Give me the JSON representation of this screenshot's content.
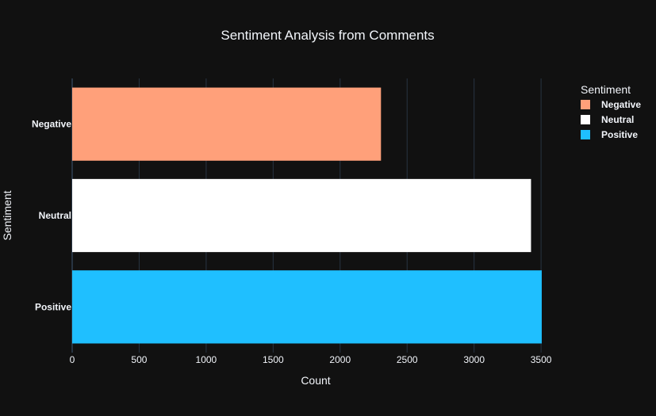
{
  "chart_data": {
    "type": "bar",
    "orientation": "horizontal",
    "title": "Sentiment Analysis from Comments",
    "xlabel": "Count",
    "ylabel": "Sentiment",
    "categories": [
      "Negative",
      "Neutral",
      "Positive"
    ],
    "values": [
      2305,
      3425,
      3505
    ],
    "colors": [
      "#ffa07a",
      "#ffffff",
      "#1fbfff"
    ],
    "xlim": [
      0,
      3600
    ],
    "xticks": [
      0,
      500,
      1000,
      1500,
      2000,
      2500,
      3000,
      3500
    ],
    "xtick_labels": [
      "0",
      "500",
      "1000",
      "1500",
      "2000",
      "2500",
      "3000",
      "3500"
    ],
    "grid": true,
    "legend": {
      "title": "Sentiment",
      "placement": "top-right",
      "items": [
        "Negative",
        "Neutral",
        "Positive"
      ]
    },
    "background_color": "#111111",
    "grid_color": "#283442"
  }
}
